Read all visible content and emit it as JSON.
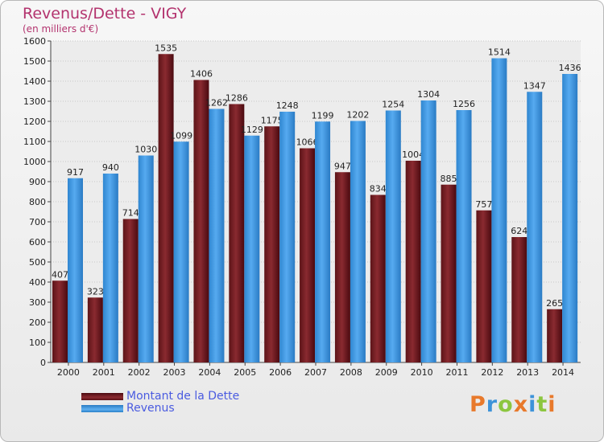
{
  "chart_data": {
    "type": "bar",
    "title": "Revenus/Dette - VIGY",
    "subtitle": "(en milliers d'€)",
    "categories": [
      "2000",
      "2001",
      "2002",
      "2003",
      "2004",
      "2005",
      "2006",
      "2007",
      "2008",
      "2009",
      "2010",
      "2011",
      "2012",
      "2013",
      "2014"
    ],
    "series": [
      {
        "name": "Montant de la Dette",
        "color": "#7a1f24",
        "values": [
          407,
          323,
          714,
          1535,
          1406,
          1286,
          1175,
          1066,
          947,
          834,
          1004,
          885,
          757,
          624,
          265
        ],
        "labels": [
          "407",
          "323",
          "714",
          "1535",
          "1406",
          "1286",
          "1175",
          "1066",
          "947",
          "834",
          "1004",
          "885",
          "757",
          "624",
          "265"
        ]
      },
      {
        "name": "Revenus",
        "color": "#3d93d9",
        "values": [
          917,
          940,
          1030,
          1099,
          1262,
          1129,
          1248,
          1199,
          1202,
          1254,
          1304,
          1256,
          1514,
          1347,
          1436
        ],
        "labels": [
          "917",
          "940",
          "1030",
          "1099",
          "1262",
          "1129",
          "1248",
          "1199",
          "1202",
          "1254",
          "1304",
          "1256",
          "1514",
          "1347",
          "1436"
        ]
      }
    ],
    "ylim": [
      0,
      1600
    ],
    "yticks": [
      0,
      100,
      200,
      300,
      400,
      500,
      600,
      700,
      800,
      900,
      1000,
      1100,
      1200,
      1300,
      1400,
      1500,
      1600
    ],
    "grid": true,
    "legend": "bottom-left"
  },
  "logo": {
    "letters": [
      "P",
      "r",
      "o",
      "x",
      "i",
      "t",
      "i"
    ]
  }
}
